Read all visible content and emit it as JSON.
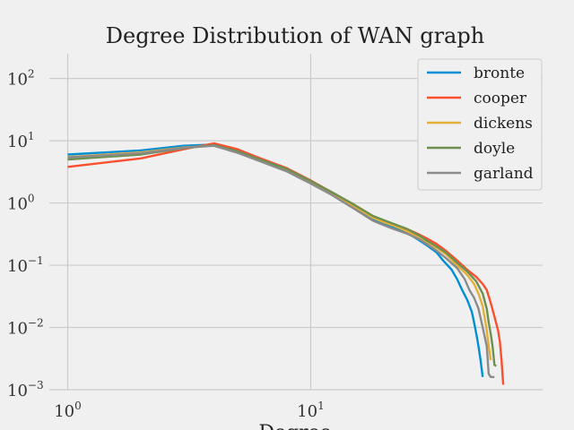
{
  "chart_data": {
    "type": "line",
    "title": "Degree Distribution of WAN graph",
    "xlabel": "Degree",
    "ylabel": "",
    "xscale": "log",
    "yscale": "log",
    "xlim": [
      0.84,
      90
    ],
    "ylim": [
      0.001,
      250
    ],
    "grid": true,
    "legend_position": "top-right",
    "x_ticks": [
      {
        "value": 1,
        "base": "10",
        "exp": "0"
      },
      {
        "value": 10,
        "base": "10",
        "exp": "1"
      }
    ],
    "y_ticks": [
      {
        "value": 100,
        "base": "10",
        "exp": "2"
      },
      {
        "value": 10,
        "base": "10",
        "exp": "1"
      },
      {
        "value": 1,
        "base": "10",
        "exp": "0"
      },
      {
        "value": 0.1,
        "base": "10",
        "exp": "−1"
      },
      {
        "value": 0.01,
        "base": "10",
        "exp": "−2"
      },
      {
        "value": 0.001,
        "base": "10",
        "exp": "−3"
      }
    ],
    "series": [
      {
        "name": "bronte",
        "color": "#008fd5",
        "points": [
          [
            1,
            6.0
          ],
          [
            2,
            7.0
          ],
          [
            3,
            8.3
          ],
          [
            4,
            8.7
          ],
          [
            5,
            6.6
          ],
          [
            6,
            5.0
          ],
          [
            8,
            3.3
          ],
          [
            10,
            2.1
          ],
          [
            12,
            1.45
          ],
          [
            15,
            0.85
          ],
          [
            18,
            0.55
          ],
          [
            20,
            0.46
          ],
          [
            22,
            0.4
          ],
          [
            25,
            0.33
          ],
          [
            28,
            0.25
          ],
          [
            30,
            0.21
          ],
          [
            33,
            0.16
          ],
          [
            35,
            0.12
          ],
          [
            38,
            0.085
          ],
          [
            40,
            0.06
          ],
          [
            42,
            0.04
          ],
          [
            44,
            0.028
          ],
          [
            46,
            0.018
          ],
          [
            47,
            0.012
          ],
          [
            48,
            0.008
          ],
          [
            49,
            0.005
          ],
          [
            50,
            0.003
          ],
          [
            51,
            0.0016
          ]
        ]
      },
      {
        "name": "cooper",
        "color": "#fc4f30",
        "points": [
          [
            1,
            3.8
          ],
          [
            2,
            5.2
          ],
          [
            3,
            7.3
          ],
          [
            4,
            9.1
          ],
          [
            5,
            7.3
          ],
          [
            6,
            5.5
          ],
          [
            8,
            3.6
          ],
          [
            10,
            2.3
          ],
          [
            12,
            1.55
          ],
          [
            15,
            0.95
          ],
          [
            18,
            0.62
          ],
          [
            20,
            0.52
          ],
          [
            22,
            0.45
          ],
          [
            25,
            0.38
          ],
          [
            28,
            0.31
          ],
          [
            30,
            0.27
          ],
          [
            33,
            0.22
          ],
          [
            36,
            0.17
          ],
          [
            40,
            0.12
          ],
          [
            44,
            0.085
          ],
          [
            48,
            0.065
          ],
          [
            51,
            0.05
          ],
          [
            53,
            0.04
          ],
          [
            55,
            0.025
          ],
          [
            57,
            0.015
          ],
          [
            59,
            0.009
          ],
          [
            60,
            0.006
          ],
          [
            61,
            0.003
          ],
          [
            62,
            0.0012
          ]
        ]
      },
      {
        "name": "dickens",
        "color": "#e5ae38",
        "points": [
          [
            1,
            5.5
          ],
          [
            2,
            6.5
          ],
          [
            3,
            7.8
          ],
          [
            4,
            8.4
          ],
          [
            5,
            6.6
          ],
          [
            6,
            5.1
          ],
          [
            8,
            3.4
          ],
          [
            10,
            2.2
          ],
          [
            12,
            1.5
          ],
          [
            15,
            0.9
          ],
          [
            18,
            0.58
          ],
          [
            20,
            0.49
          ],
          [
            22,
            0.43
          ],
          [
            25,
            0.35
          ],
          [
            28,
            0.28
          ],
          [
            30,
            0.24
          ],
          [
            33,
            0.19
          ],
          [
            36,
            0.15
          ],
          [
            40,
            0.1
          ],
          [
            44,
            0.07
          ],
          [
            47,
            0.05
          ],
          [
            49,
            0.035
          ],
          [
            51,
            0.022
          ],
          [
            52,
            0.014
          ],
          [
            53,
            0.009
          ],
          [
            54,
            0.005
          ],
          [
            55,
            0.003
          ]
        ]
      },
      {
        "name": "doyle",
        "color": "#6d904f",
        "points": [
          [
            1,
            5.0
          ],
          [
            2,
            6.0
          ],
          [
            3,
            7.6
          ],
          [
            4,
            8.5
          ],
          [
            5,
            6.8
          ],
          [
            6,
            5.2
          ],
          [
            8,
            3.5
          ],
          [
            10,
            2.25
          ],
          [
            12,
            1.55
          ],
          [
            15,
            0.95
          ],
          [
            18,
            0.62
          ],
          [
            20,
            0.53
          ],
          [
            22,
            0.46
          ],
          [
            25,
            0.38
          ],
          [
            28,
            0.3
          ],
          [
            30,
            0.25
          ],
          [
            33,
            0.2
          ],
          [
            36,
            0.16
          ],
          [
            40,
            0.11
          ],
          [
            44,
            0.08
          ],
          [
            48,
            0.055
          ],
          [
            51,
            0.035
          ],
          [
            53,
            0.02
          ],
          [
            54,
            0.012
          ],
          [
            55,
            0.008
          ],
          [
            56,
            0.005
          ],
          [
            57,
            0.0025
          ],
          [
            58,
            0.0024
          ]
        ]
      },
      {
        "name": "garland",
        "color": "#8b8b8b",
        "points": [
          [
            1,
            5.4
          ],
          [
            2,
            6.3
          ],
          [
            3,
            7.7
          ],
          [
            4,
            8.3
          ],
          [
            5,
            6.4
          ],
          [
            6,
            4.9
          ],
          [
            8,
            3.2
          ],
          [
            10,
            2.05
          ],
          [
            12,
            1.4
          ],
          [
            15,
            0.82
          ],
          [
            18,
            0.52
          ],
          [
            20,
            0.44
          ],
          [
            22,
            0.38
          ],
          [
            25,
            0.32
          ],
          [
            28,
            0.26
          ],
          [
            30,
            0.22
          ],
          [
            33,
            0.17
          ],
          [
            36,
            0.13
          ],
          [
            40,
            0.09
          ],
          [
            43,
            0.06
          ],
          [
            45,
            0.04
          ],
          [
            47,
            0.03
          ],
          [
            49,
            0.02
          ],
          [
            51,
            0.01
          ],
          [
            53,
            0.005
          ],
          [
            54,
            0.0018
          ],
          [
            55,
            0.0016
          ],
          [
            57,
            0.0016
          ]
        ]
      }
    ]
  }
}
